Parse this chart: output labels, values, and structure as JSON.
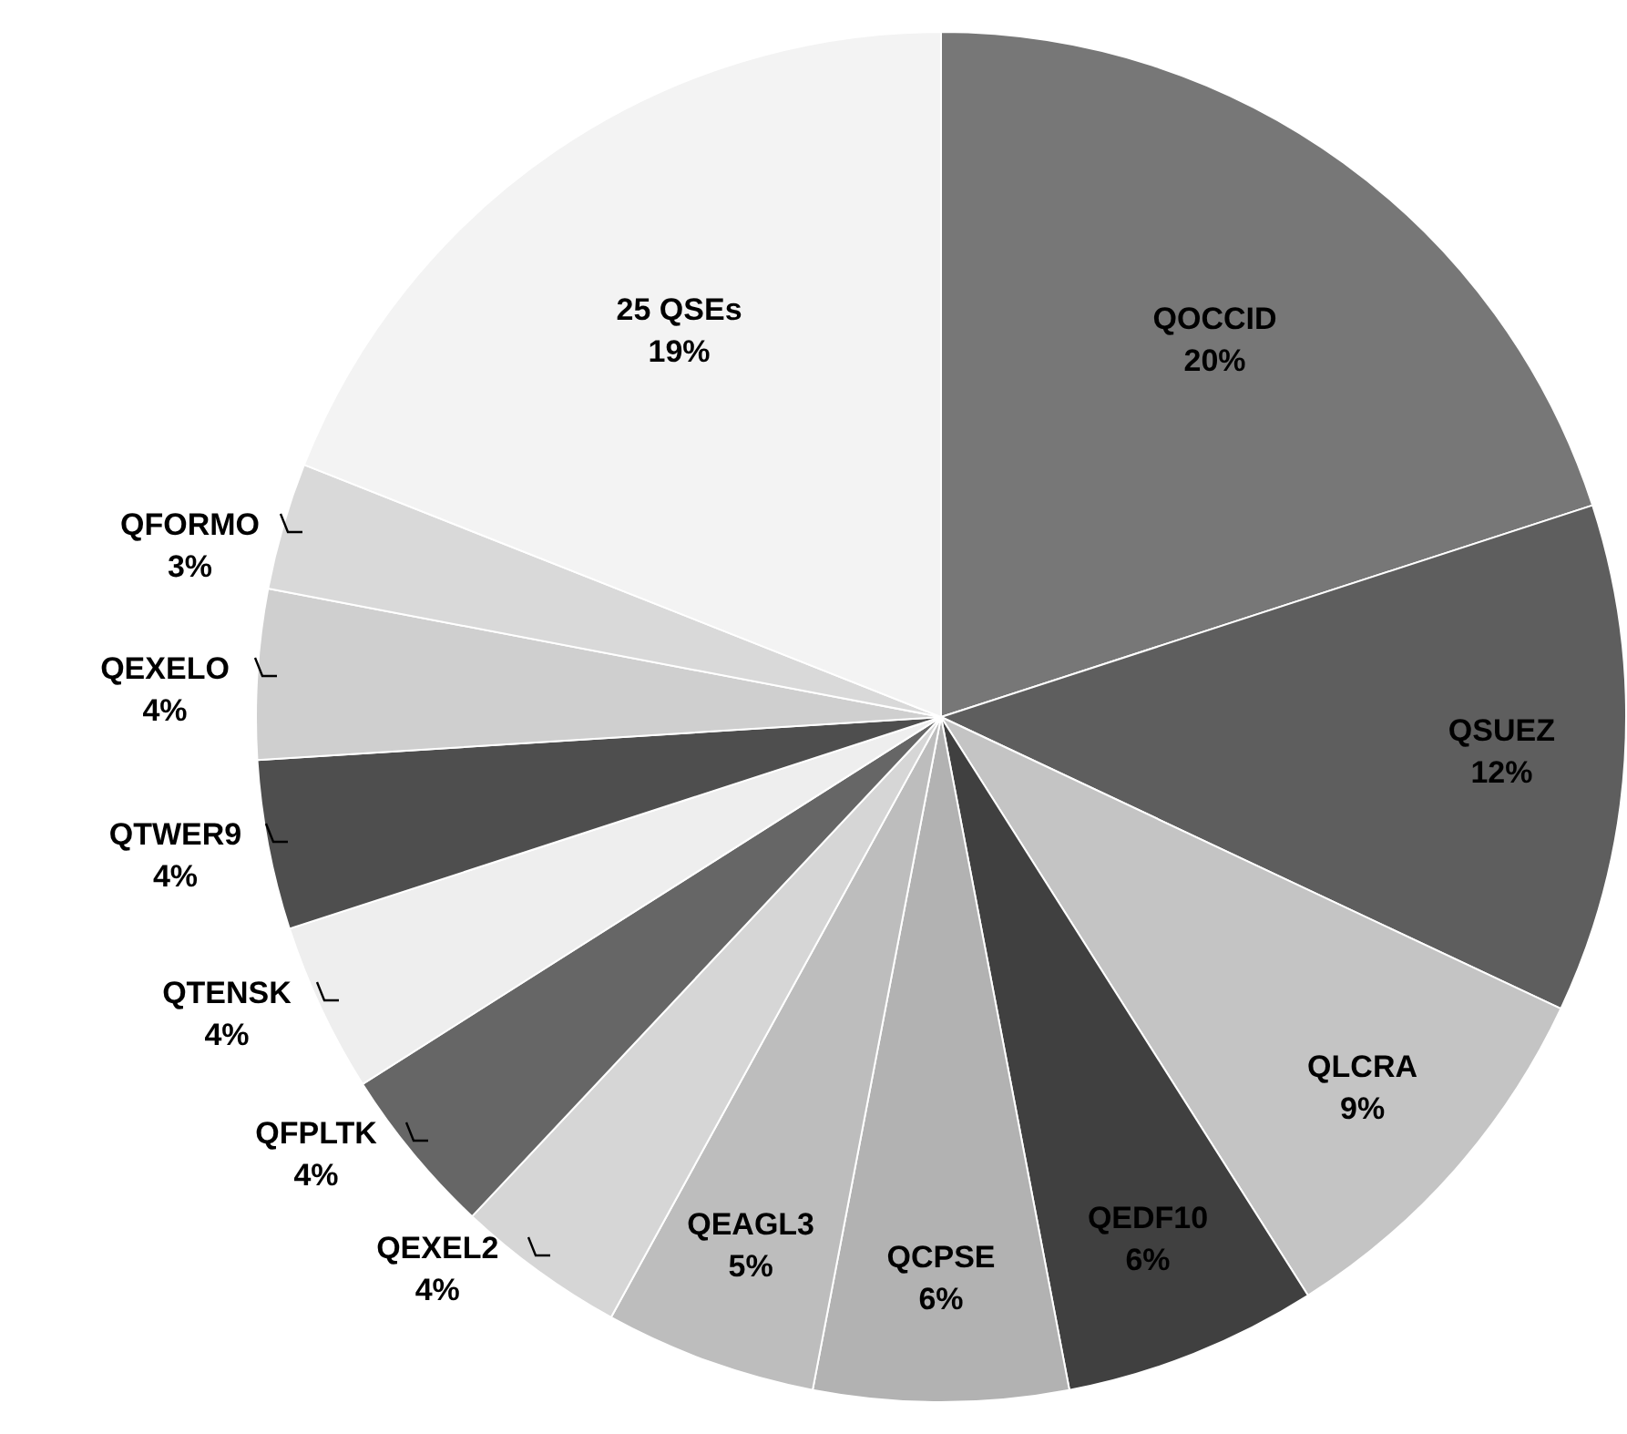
{
  "chart_data": {
    "type": "pie",
    "categories": [
      "QOCCID",
      "QSUEZ",
      "QLCRA",
      "QEDF10",
      "QCPSE",
      "QEAGL3",
      "QEXEL2",
      "QFPLTK",
      "QTENSK",
      "QTWER9",
      "QEXELO",
      "QFORMO",
      "25 QSEs"
    ],
    "values": [
      20,
      12,
      9,
      6,
      6,
      5,
      4,
      4,
      4,
      4,
      4,
      3,
      19
    ],
    "value_labels": [
      "20%",
      "12%",
      "9%",
      "6%",
      "6%",
      "5%",
      "4%",
      "4%",
      "4%",
      "4%",
      "4%",
      "3%",
      "19%"
    ],
    "colors": [
      "#777777",
      "#5e5e5e",
      "#c4c4c4",
      "#404040",
      "#b2b2b2",
      "#bdbdbd",
      "#d6d6d6",
      "#666666",
      "#eeeeee",
      "#4e4e4e",
      "#cfcfcf",
      "#d9d9d9",
      "#f3f3f3"
    ],
    "legend": false
  }
}
